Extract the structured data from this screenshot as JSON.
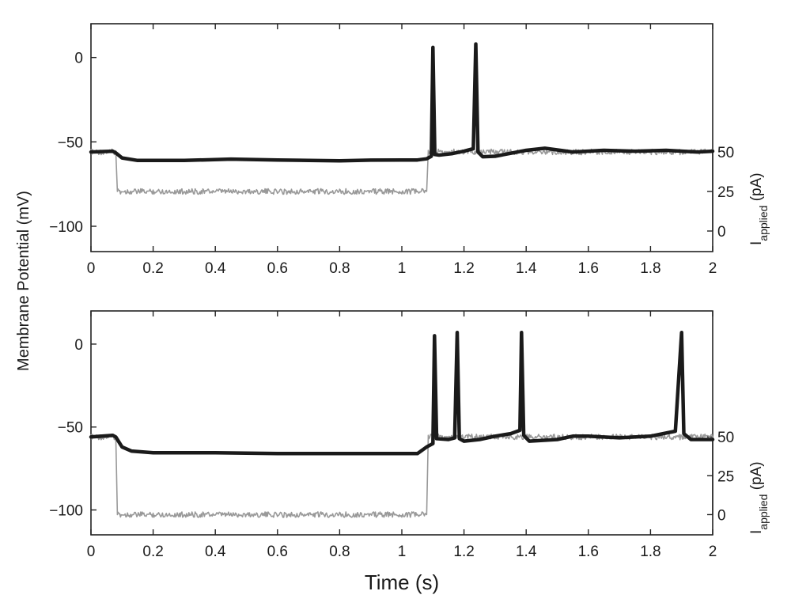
{
  "chart_data": [
    {
      "type": "line",
      "panel": "top",
      "xlabel": "",
      "ylabel": "Membrane Potential (mV)",
      "y2label": {
        "main": "I",
        "sub": "applied",
        "unit": " (pA)"
      },
      "xlim": [
        0,
        2
      ],
      "ylim": [
        -115,
        20
      ],
      "y2lim": [
        -13,
        131
      ],
      "x_ticks": [
        "0",
        "0.2",
        "0.4",
        "0.6",
        "0.8",
        "1",
        "1.2",
        "1.4",
        "1.6",
        "1.8",
        "2"
      ],
      "y_ticks": [
        "0",
        "−50",
        "−100"
      ],
      "y2_ticks": [
        "50",
        "25",
        "0"
      ],
      "y_tick_values": [
        0,
        -50,
        -100
      ],
      "y2_tick_values": [
        50,
        25,
        0
      ],
      "series": [
        {
          "role": "membrane_potential",
          "color": "#1a1a1a",
          "points": [
            [
              0,
              -56
            ],
            [
              0.07,
              -55.5
            ],
            [
              0.08,
              -56.5
            ],
            [
              0.1,
              -59.5
            ],
            [
              0.15,
              -61
            ],
            [
              0.3,
              -61
            ],
            [
              0.45,
              -60.2
            ],
            [
              0.6,
              -60.7
            ],
            [
              0.8,
              -61.2
            ],
            [
              0.9,
              -60.8
            ],
            [
              1.05,
              -60.7
            ],
            [
              1.08,
              -60
            ],
            [
              1.095,
              -58.5
            ],
            [
              1.1,
              6
            ],
            [
              1.106,
              -57.5
            ],
            [
              1.12,
              -57.8
            ],
            [
              1.16,
              -57
            ],
            [
              1.2,
              -55.5
            ],
            [
              1.23,
              -54
            ],
            [
              1.238,
              8
            ],
            [
              1.245,
              -56
            ],
            [
              1.26,
              -58.8
            ],
            [
              1.3,
              -58.5
            ],
            [
              1.4,
              -55
            ],
            [
              1.46,
              -53.8
            ],
            [
              1.55,
              -56
            ],
            [
              1.65,
              -55
            ],
            [
              1.75,
              -55.5
            ],
            [
              1.85,
              -55
            ],
            [
              1.95,
              -56
            ],
            [
              2,
              -55.5
            ]
          ]
        },
        {
          "role": "applied_current",
          "color": "#999999",
          "points": [
            [
              0,
              50
            ],
            [
              0.08,
              50
            ],
            [
              0.085,
              25
            ],
            [
              1.08,
              25
            ],
            [
              1.085,
              50
            ],
            [
              2,
              50
            ]
          ]
        }
      ]
    },
    {
      "type": "line",
      "panel": "bottom",
      "xlabel": "Time (s)",
      "ylabel": "",
      "y2label": {
        "main": "I",
        "sub": "applied",
        "unit": " (pA)"
      },
      "xlim": [
        0,
        2
      ],
      "ylim": [
        -115,
        20
      ],
      "y2lim": [
        -13,
        131
      ],
      "x_ticks": [
        "0",
        "0.2",
        "0.4",
        "0.6",
        "0.8",
        "1",
        "1.2",
        "1.4",
        "1.6",
        "1.8",
        "2"
      ],
      "y_ticks": [
        "0",
        "−50",
        "−100"
      ],
      "y2_ticks": [
        "50",
        "25",
        "0"
      ],
      "y_tick_values": [
        0,
        -50,
        -100
      ],
      "y2_tick_values": [
        50,
        25,
        0
      ],
      "series": [
        {
          "role": "membrane_potential",
          "color": "#1a1a1a",
          "points": [
            [
              0,
              -56
            ],
            [
              0.07,
              -55
            ],
            [
              0.08,
              -56
            ],
            [
              0.1,
              -62
            ],
            [
              0.13,
              -64.5
            ],
            [
              0.2,
              -65.5
            ],
            [
              0.4,
              -65.5
            ],
            [
              0.6,
              -66
            ],
            [
              0.8,
              -66
            ],
            [
              1.05,
              -66
            ],
            [
              1.08,
              -62
            ],
            [
              1.1,
              -60
            ],
            [
              1.105,
              5
            ],
            [
              1.112,
              -57
            ],
            [
              1.15,
              -57.5
            ],
            [
              1.17,
              -56.5
            ],
            [
              1.178,
              7
            ],
            [
              1.185,
              -57
            ],
            [
              1.2,
              -58.5
            ],
            [
              1.25,
              -57.5
            ],
            [
              1.3,
              -55.5
            ],
            [
              1.35,
              -54
            ],
            [
              1.38,
              -52
            ],
            [
              1.385,
              7
            ],
            [
              1.392,
              -55
            ],
            [
              1.41,
              -58.5
            ],
            [
              1.5,
              -57.5
            ],
            [
              1.55,
              -55.5
            ],
            [
              1.6,
              -55.5
            ],
            [
              1.7,
              -56.5
            ],
            [
              1.8,
              -55.5
            ],
            [
              1.88,
              -52.5
            ],
            [
              1.9,
              7
            ],
            [
              1.907,
              -54
            ],
            [
              1.93,
              -57.5
            ],
            [
              2,
              -57.5
            ]
          ]
        },
        {
          "role": "applied_current",
          "color": "#999999",
          "points": [
            [
              0,
              50
            ],
            [
              0.08,
              50
            ],
            [
              0.085,
              0
            ],
            [
              1.08,
              0
            ],
            [
              1.085,
              50
            ],
            [
              2,
              50
            ]
          ]
        }
      ]
    }
  ]
}
